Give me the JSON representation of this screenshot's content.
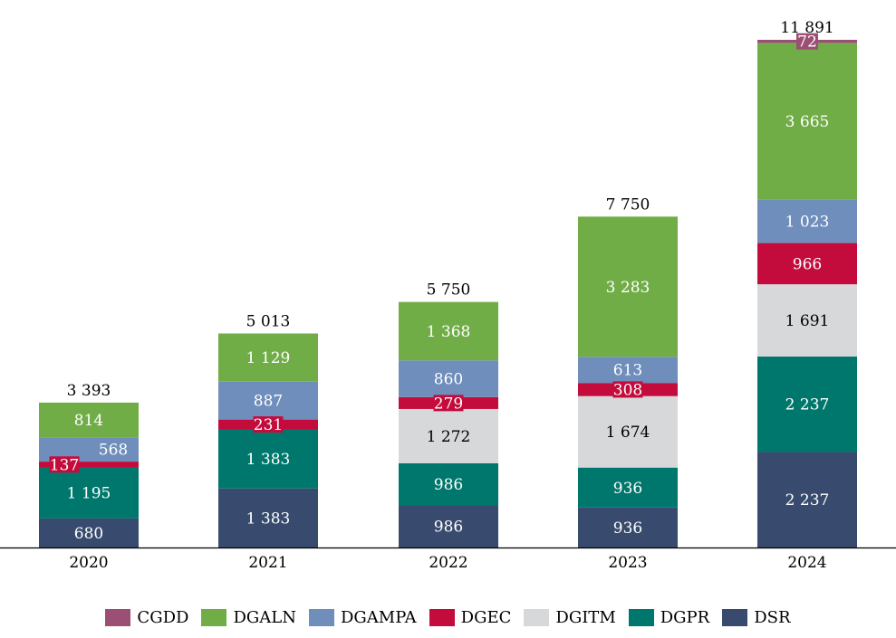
{
  "chart_data": {
    "type": "bar",
    "stacked": true,
    "title": "",
    "xlabel": "",
    "ylabel": "",
    "categories": [
      "2020",
      "2021",
      "2022",
      "2023",
      "2024"
    ],
    "totals": [
      3393,
      5013,
      5750,
      7750,
      11891
    ],
    "total_labels": [
      "3 393",
      "5 013",
      "5 750",
      "7 750",
      "11 891"
    ],
    "ylim": [
      0,
      12000
    ],
    "grid": false,
    "legend_position": "bottom",
    "series": [
      {
        "name": "DSR",
        "color": "#384b6e",
        "text_color": "#ffffff",
        "values": [
          680,
          1383,
          986,
          936,
          2237
        ],
        "labels": [
          "680",
          "1 383",
          "986",
          "936",
          "2 237"
        ]
      },
      {
        "name": "DGPR",
        "color": "#00776d",
        "text_color": "#ffffff",
        "values": [
          1195,
          1383,
          986,
          936,
          2237
        ],
        "labels": [
          "1 195",
          "1 383",
          "986",
          "936",
          "2 237"
        ]
      },
      {
        "name": "DGITM",
        "color": "#d7d8da",
        "text_color": "#000000",
        "values": [
          0,
          0,
          1272,
          1674,
          1691
        ],
        "labels": [
          "",
          "",
          "1 272",
          "1 674",
          "1 691"
        ]
      },
      {
        "name": "DGEC",
        "color": "#c30c3c",
        "text_color": "#ffffff",
        "values": [
          137,
          231,
          279,
          308,
          966
        ],
        "labels": [
          "137",
          "231",
          "279",
          "308",
          "966"
        ]
      },
      {
        "name": "DGAMPA",
        "color": "#6f8ebb",
        "text_color": "#ffffff",
        "values": [
          568,
          887,
          860,
          613,
          1023
        ],
        "labels": [
          "568",
          "887",
          "860",
          "613",
          "1 023"
        ]
      },
      {
        "name": "DGALN",
        "color": "#70ad47",
        "text_color": "#ffffff",
        "values": [
          814,
          1129,
          1368,
          3283,
          3665
        ],
        "labels": [
          "814",
          "1 129",
          "1 368",
          "3 283",
          "3 665"
        ]
      },
      {
        "name": "CGDD",
        "color": "#9b4f74",
        "text_color": "#ffffff",
        "values": [
          0,
          0,
          0,
          0,
          72
        ],
        "labels": [
          "",
          "",
          "",
          "",
          "72"
        ]
      }
    ],
    "legend_order": [
      "CGDD",
      "DGALN",
      "DGAMPA",
      "DGEC",
      "DGITM",
      "DGPR",
      "DSR"
    ]
  }
}
